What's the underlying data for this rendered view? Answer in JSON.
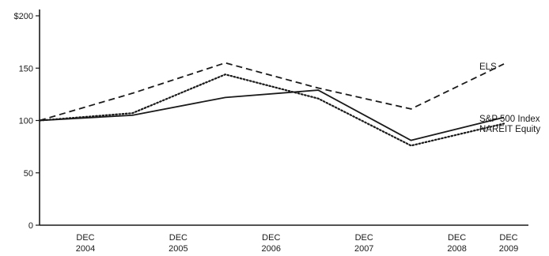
{
  "chart_data": {
    "type": "line",
    "categories": [
      "DEC 2004",
      "DEC 2005",
      "DEC 2006",
      "DEC 2007",
      "DEC 2008",
      "DEC 2009"
    ],
    "x_ticks": [
      {
        "top": "DEC",
        "bottom": "2004"
      },
      {
        "top": "DEC",
        "bottom": "2005"
      },
      {
        "top": "DEC",
        "bottom": "2006"
      },
      {
        "top": "DEC",
        "bottom": "2007"
      },
      {
        "top": "DEC",
        "bottom": "2008"
      },
      {
        "top": "DEC",
        "bottom": "2009"
      }
    ],
    "y_ticks": [
      "0",
      "50",
      "100",
      "150",
      "$200"
    ],
    "y_tick_values": [
      0,
      50,
      100,
      150,
      200
    ],
    "ylim": [
      0,
      200
    ],
    "grid": false,
    "series": [
      {
        "name": "ELS",
        "style": "dashed",
        "values": [
          100,
          126,
          155,
          131,
          111,
          154
        ]
      },
      {
        "name": "S&P 500 Index",
        "style": "solid",
        "values": [
          100,
          105,
          122,
          129,
          81,
          103
        ]
      },
      {
        "name": "NAREIT Equity",
        "style": "dotted",
        "values": [
          100,
          107,
          144,
          121,
          76,
          97
        ]
      }
    ],
    "colors": {
      "line": "#1a1a1a",
      "axis": "#1a1a1a"
    }
  }
}
